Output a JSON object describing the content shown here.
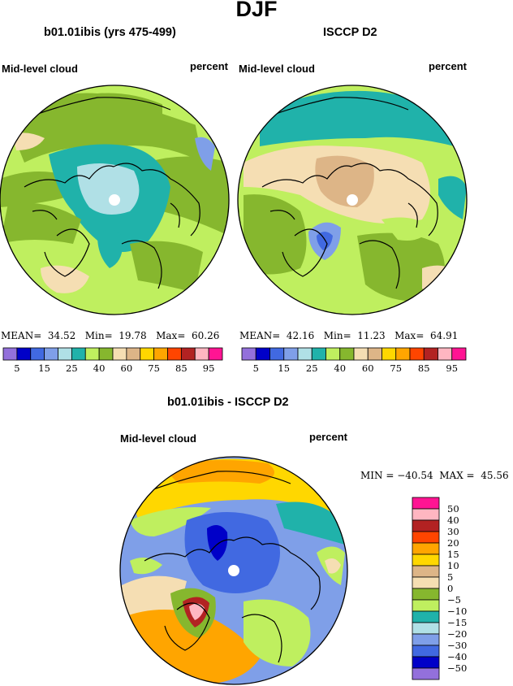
{
  "title": "DJF",
  "colors": {
    "lavender": "#9370db",
    "navy": "#0000c8",
    "royal": "#4169e1",
    "cornflower": "#7f9fe8",
    "paleblue": "#b0e0e6",
    "teal": "#20b2aa",
    "lightgreen": "#bfef5f",
    "olive": "#86b72e",
    "wheat": "#f5deb3",
    "tan": "#ddb587",
    "gold": "#ffd700",
    "orange": "#ffa500",
    "orangered": "#ff4500",
    "firebrick": "#b22222",
    "pink": "#ffb6c1",
    "magenta": "#ff1493",
    "white": "#ffffff"
  },
  "panels": [
    {
      "title": "b01.01ibis (yrs 475-499)",
      "left_label": "Mid-level cloud",
      "right_label": "percent",
      "stats": {
        "mean_label": "MEAN=",
        "mean": "34.52",
        "min_label": "Min=",
        "min": "19.78",
        "max_label": "Max=",
        "max": "60.26"
      }
    },
    {
      "title": "ISCCP D2",
      "left_label": "Mid-level cloud",
      "right_label": "percent",
      "stats": {
        "mean_label": "MEAN=",
        "mean": "42.16",
        "min_label": "Min=",
        "min": "11.23",
        "max_label": "Max=",
        "max": "64.91"
      }
    },
    {
      "title": "b01.01ibis - ISCCP D2",
      "left_label": "Mid-level cloud",
      "right_label": "percent",
      "stats_text": "MIN = −40.54  MAX =  45.56"
    }
  ],
  "chart_data": [
    {
      "type": "heatmap",
      "title": "b01.01ibis (yrs 475-499)",
      "variable": "Mid-level cloud",
      "units": "percent",
      "projection": "north polar stereographic",
      "levels": [
        5,
        10,
        15,
        20,
        25,
        30,
        40,
        50,
        60,
        70,
        75,
        80,
        85,
        90,
        95
      ],
      "tick_labels": [
        "5",
        "15",
        "25",
        "40",
        "60",
        "75",
        "85",
        "95"
      ],
      "colors": [
        "#9370db",
        "#0000c8",
        "#4169e1",
        "#7f9fe8",
        "#b0e0e6",
        "#20b2aa",
        "#bfef5f",
        "#86b72e",
        "#f5deb3",
        "#ddb587",
        "#ffd700",
        "#ffa500",
        "#ff4500",
        "#b22222",
        "#ffb6c1",
        "#ff1493"
      ],
      "mean": 34.52,
      "min": 19.78,
      "max": 60.26
    },
    {
      "type": "heatmap",
      "title": "ISCCP D2",
      "variable": "Mid-level cloud",
      "units": "percent",
      "projection": "north polar stereographic",
      "levels": [
        5,
        10,
        15,
        20,
        25,
        30,
        40,
        50,
        60,
        70,
        75,
        80,
        85,
        90,
        95
      ],
      "tick_labels": [
        "5",
        "15",
        "25",
        "40",
        "60",
        "75",
        "85",
        "95"
      ],
      "colors": [
        "#9370db",
        "#0000c8",
        "#4169e1",
        "#7f9fe8",
        "#b0e0e6",
        "#20b2aa",
        "#bfef5f",
        "#86b72e",
        "#f5deb3",
        "#ddb587",
        "#ffd700",
        "#ffa500",
        "#ff4500",
        "#b22222",
        "#ffb6c1",
        "#ff1493"
      ],
      "mean": 42.16,
      "min": 11.23,
      "max": 64.91
    },
    {
      "type": "heatmap",
      "title": "b01.01ibis - ISCCP D2",
      "variable": "Mid-level cloud",
      "units": "percent",
      "projection": "north polar stereographic",
      "levels": [
        -50,
        -40,
        -30,
        -20,
        -15,
        -10,
        -5,
        0,
        5,
        10,
        15,
        20,
        30,
        40,
        50
      ],
      "tick_labels": [
        "50",
        "40",
        "30",
        "20",
        "15",
        "10",
        "5",
        "0",
        "−5",
        "−10",
        "−15",
        "−20",
        "−30",
        "−40",
        "−50"
      ],
      "colors": [
        "#9370db",
        "#0000c8",
        "#4169e1",
        "#7f9fe8",
        "#b0e0e6",
        "#20b2aa",
        "#bfef5f",
        "#86b72e",
        "#f5deb3",
        "#ddb587",
        "#ffd700",
        "#ffa500",
        "#ff4500",
        "#b22222",
        "#ffb6c1",
        "#ff1493"
      ],
      "min": -40.54,
      "max": 45.56
    }
  ]
}
